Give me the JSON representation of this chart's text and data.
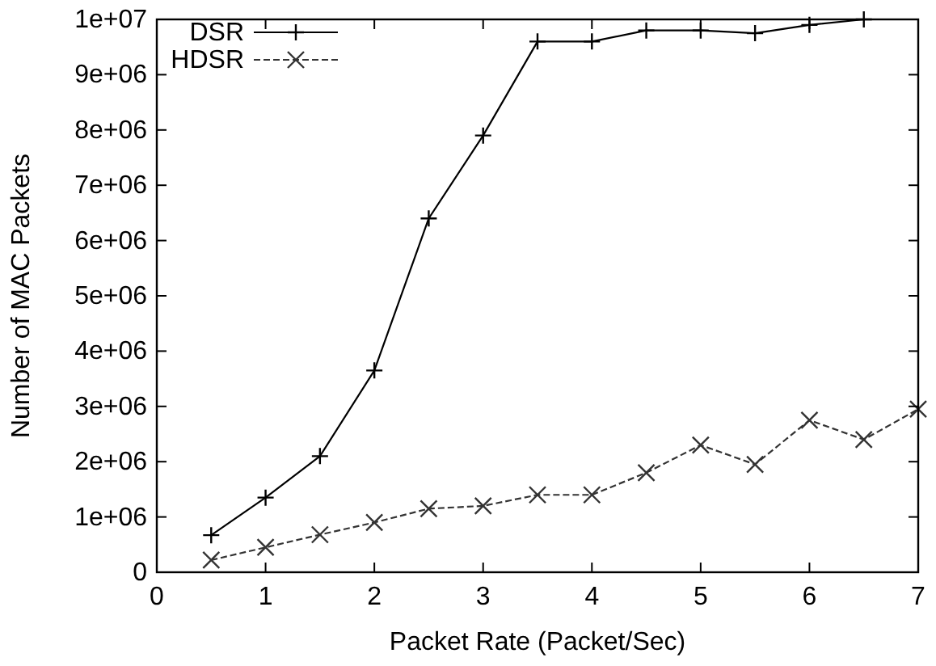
{
  "chart_data": {
    "type": "line",
    "xlabel": "Packet Rate (Packet/Sec)",
    "ylabel": "Number of MAC Packets",
    "xlim": [
      0,
      7
    ],
    "xticks": [
      0,
      1,
      2,
      3,
      4,
      5,
      6,
      7
    ],
    "ylim": [
      0,
      10000000
    ],
    "yticks": [
      {
        "value": 0,
        "label": "0"
      },
      {
        "value": 1000000,
        "label": "1e+06"
      },
      {
        "value": 2000000,
        "label": "2e+06"
      },
      {
        "value": 3000000,
        "label": "3e+06"
      },
      {
        "value": 4000000,
        "label": "4e+06"
      },
      {
        "value": 5000000,
        "label": "5e+06"
      },
      {
        "value": 6000000,
        "label": "6e+06"
      },
      {
        "value": 7000000,
        "label": "7e+06"
      },
      {
        "value": 8000000,
        "label": "8e+06"
      },
      {
        "value": 9000000,
        "label": "9e+06"
      },
      {
        "value": 10000000,
        "label": "1e+07"
      }
    ],
    "grid": false,
    "legend": "top left",
    "series": [
      {
        "name": "DSR",
        "color": "#000000",
        "line_style": "solid",
        "marker": "plus",
        "x": [
          0.5,
          1,
          1.5,
          2,
          2.5,
          3,
          3.5,
          4,
          4.5,
          5,
          5.5,
          6,
          6.5
        ],
        "values": [
          670000,
          1350000,
          2100000,
          3650000,
          6400000,
          7900000,
          9600000,
          9600000,
          9800000,
          9800000,
          9750000,
          9900000,
          10000000
        ]
      },
      {
        "name": "HDSR",
        "color": "#333333",
        "line_style": "dashed",
        "marker": "cross",
        "x": [
          0.5,
          1,
          1.5,
          2,
          2.5,
          3,
          3.5,
          4,
          4.5,
          5,
          5.5,
          6,
          6.5,
          7
        ],
        "values": [
          220000,
          450000,
          680000,
          900000,
          1150000,
          1200000,
          1400000,
          1400000,
          1800000,
          2300000,
          1950000,
          2750000,
          2400000,
          2950000
        ]
      }
    ]
  }
}
